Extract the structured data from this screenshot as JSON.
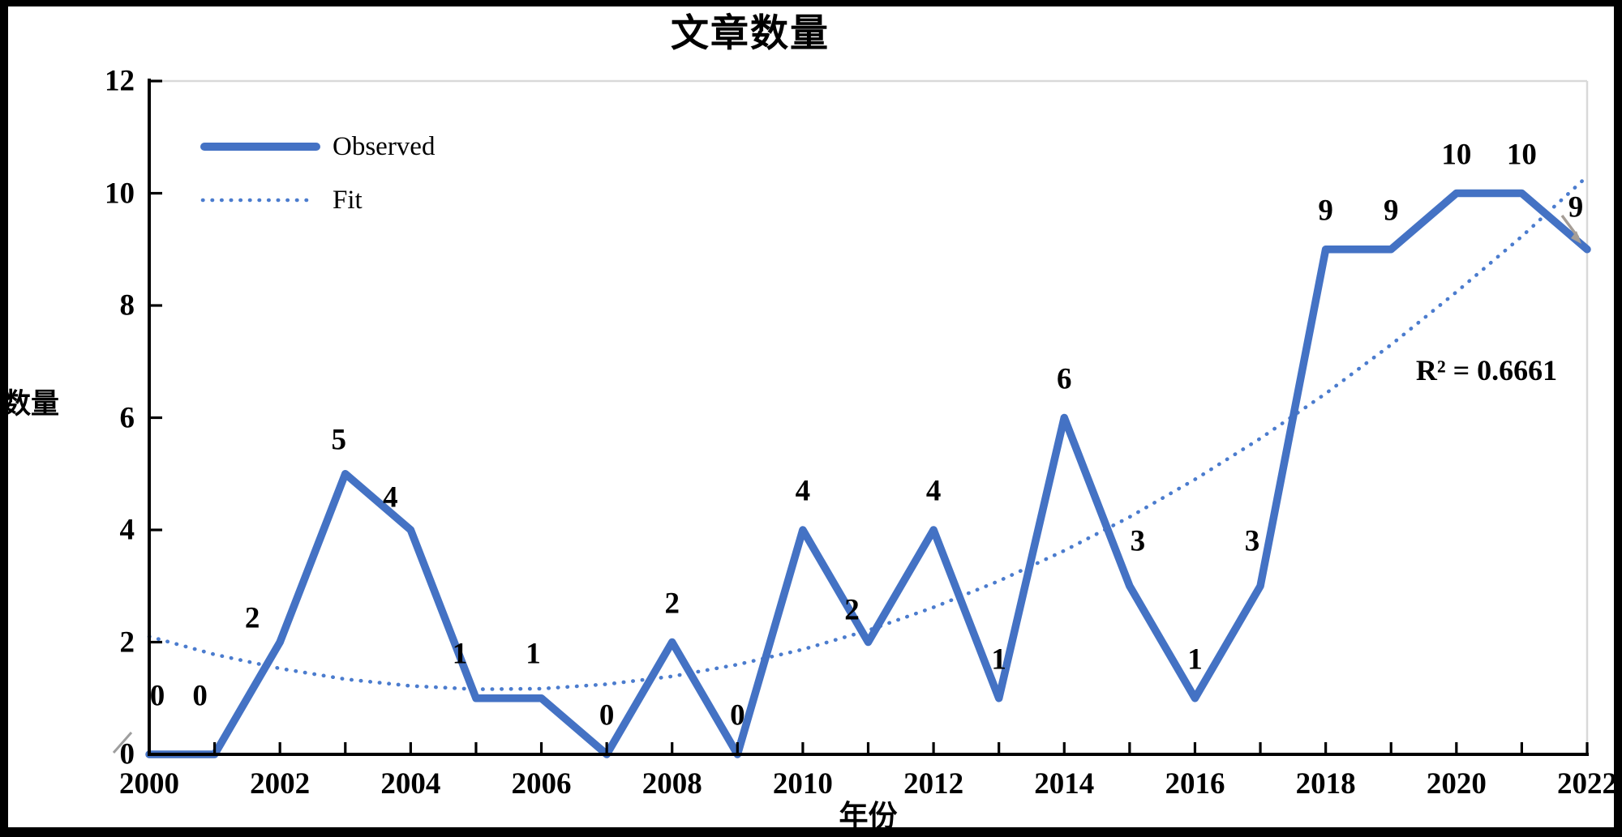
{
  "chart_data": {
    "type": "line",
    "title": "文章数量",
    "xlabel": "年份",
    "ylabel": "数量",
    "x": [
      2000,
      2001,
      2002,
      2003,
      2004,
      2005,
      2006,
      2007,
      2008,
      2009,
      2010,
      2011,
      2012,
      2013,
      2014,
      2015,
      2016,
      2017,
      2018,
      2019,
      2020,
      2021,
      2022
    ],
    "x_tick_label_step": 2,
    "ylim": [
      0,
      12
    ],
    "y_tick_step": 2,
    "grid": "light gray border on top and right of plot area only",
    "legend_position": "top-left inside plot",
    "series": [
      {
        "name": "Observed",
        "style": "solid",
        "color": "#4472c4",
        "show_data_labels": true,
        "values": [
          0,
          0,
          2,
          5,
          4,
          1,
          1,
          0,
          2,
          0,
          4,
          2,
          4,
          1,
          6,
          3,
          1,
          3,
          9,
          9,
          10,
          10,
          9
        ]
      },
      {
        "name": "Fit",
        "style": "dotted",
        "color": "#4b7cce",
        "show_data_labels": false,
        "values": [
          2.1,
          1.78,
          1.53,
          1.34,
          1.22,
          1.16,
          1.17,
          1.25,
          1.39,
          1.6,
          1.87,
          2.21,
          2.62,
          3.09,
          3.63,
          4.23,
          4.9,
          5.63,
          6.43,
          7.3,
          8.24,
          9.23,
          10.3
        ]
      }
    ],
    "annotation": "R² = 0.6661",
    "axis_color": "#000000",
    "gridline_color": "#d9d9d9",
    "label_color": "#000000"
  }
}
